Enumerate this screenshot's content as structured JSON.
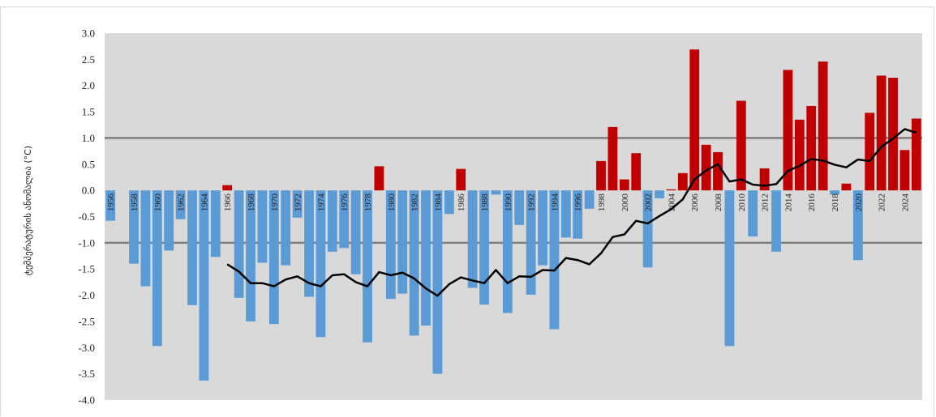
{
  "chart_data": {
    "type": "bar",
    "title": "",
    "xlabel": "",
    "ylabel": "ტემპერატურის ანომალია (°C)",
    "ylim": [
      -4.0,
      3.0
    ],
    "y_ticks": [
      "3.0",
      "2.5",
      "2.0",
      "1.5",
      "1.0",
      "0.5",
      "0.0",
      "-0.5",
      "-1.0",
      "-1.5",
      "-2.0",
      "-2.5",
      "-3.0",
      "-3.5",
      "-4.0"
    ],
    "reference_lines": [
      1.0,
      -1.0
    ],
    "grid": false,
    "x_tick_labels": [
      "1956",
      "1958",
      "1960",
      "1962",
      "1964",
      "1966",
      "1968",
      "1970",
      "1972",
      "1974",
      "1976",
      "1978",
      "1980",
      "1982",
      "1984",
      "1986",
      "1988",
      "1990",
      "1992",
      "1994",
      "1996",
      "1998",
      "2000",
      "2002",
      "2004",
      "2006",
      "2008",
      "2010",
      "2012",
      "2014",
      "2016",
      "2018",
      "2020",
      "2022",
      "2024"
    ],
    "colors": {
      "positive": "#c00000",
      "negative": "#5b9bd5",
      "background": "#d9d9d9",
      "reference_line": "#7f7f7f",
      "running_mean": "#000000"
    },
    "years": [
      1956,
      1957,
      1958,
      1959,
      1960,
      1961,
      1962,
      1963,
      1964,
      1965,
      1966,
      1967,
      1968,
      1969,
      1970,
      1971,
      1972,
      1973,
      1974,
      1975,
      1976,
      1977,
      1978,
      1979,
      1980,
      1981,
      1982,
      1983,
      1984,
      1985,
      1986,
      1987,
      1988,
      1989,
      1990,
      1991,
      1992,
      1993,
      1994,
      1995,
      1996,
      1997,
      1998,
      1999,
      2000,
      2001,
      2002,
      2003,
      2004,
      2005,
      2006,
      2007,
      2008,
      2009,
      2010,
      2011,
      2012,
      2013,
      2014,
      2015,
      2016,
      2017,
      2018,
      2019,
      2020,
      2021,
      2022,
      2023,
      2024,
      2025
    ],
    "values": [
      -0.58,
      0.0,
      -1.4,
      -1.83,
      -2.97,
      -1.15,
      -0.55,
      -2.19,
      -3.63,
      -1.27,
      0.1,
      -2.05,
      -2.5,
      -1.38,
      -2.55,
      -1.43,
      -0.52,
      -2.03,
      -2.8,
      -1.17,
      -1.1,
      -1.6,
      -2.9,
      0.46,
      -2.07,
      -1.97,
      -2.77,
      -2.58,
      -3.5,
      -0.45,
      0.41,
      -1.86,
      -2.18,
      -0.08,
      -2.34,
      -0.66,
      -1.99,
      -1.43,
      -2.65,
      -0.9,
      -0.92,
      -0.35,
      0.56,
      1.21,
      0.21,
      0.71,
      -1.47,
      -0.15,
      0.02,
      0.33,
      2.69,
      0.87,
      0.73,
      -2.97,
      1.71,
      -0.88,
      0.42,
      -1.17,
      2.3,
      1.35,
      1.61,
      2.46,
      -0.08,
      0.13,
      -1.33,
      1.48,
      2.19,
      2.15,
      0.77,
      1.37
    ],
    "running_mean_series": {
      "start_year": 1966,
      "values": [
        -1.41,
        -1.55,
        -1.77,
        -1.77,
        -1.83,
        -1.7,
        -1.64,
        -1.77,
        -1.83,
        -1.62,
        -1.6,
        -1.75,
        -1.83,
        -1.56,
        -1.62,
        -1.57,
        -1.68,
        -1.87,
        -2.01,
        -1.79,
        -1.66,
        -1.72,
        -1.77,
        -1.52,
        -1.77,
        -1.64,
        -1.65,
        -1.52,
        -1.53,
        -1.29,
        -1.33,
        -1.41,
        -1.2,
        -0.89,
        -0.84,
        -0.58,
        -0.63,
        -0.49,
        -0.36,
        -0.17,
        0.21,
        0.38,
        0.5,
        0.17,
        0.21,
        0.11,
        0.09,
        0.12,
        0.37,
        0.47,
        0.6,
        0.57,
        0.49,
        0.44,
        0.59,
        0.56,
        0.83,
        0.99,
        1.17,
        1.1
      ]
    }
  }
}
